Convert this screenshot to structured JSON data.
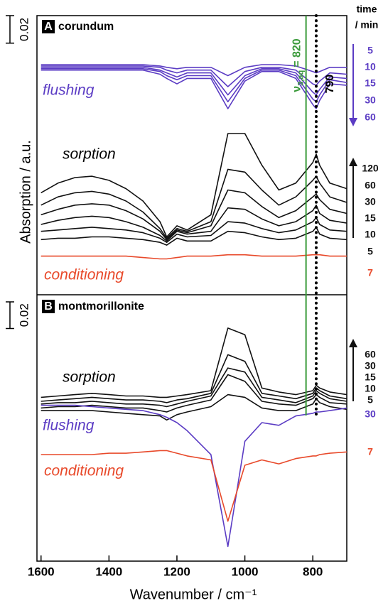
{
  "shared": {
    "x_label": "Wavenumber / cm⁻¹",
    "y_label": "Absorption / a.u.",
    "xlim": [
      1612,
      700
    ],
    "xticks": [
      1600,
      1400,
      1200,
      1000,
      800
    ],
    "legend_title": [
      "time",
      "/ min"
    ],
    "markers": [
      {
        "value": 820,
        "symbol": "ν",
        "subscript": "3,aq",
        "label": "= 820",
        "color": "#3a9a3a",
        "style": "solid"
      },
      {
        "value": 790,
        "label": "790",
        "color": "#000000",
        "style": "dotted"
      }
    ]
  },
  "chart_data": [
    {
      "type": "line",
      "panel": "A",
      "title": "corundum",
      "ylim": [
        0,
        0.2
      ],
      "scale_bar": {
        "value": 0.02,
        "label": "0.02"
      },
      "annotations": [
        {
          "text": "flushing",
          "color": "#5b3cc4"
        },
        {
          "text": "sorption",
          "color": "#000000"
        },
        {
          "text": "conditioning",
          "color": "#e8492a"
        }
      ],
      "x": [
        1600,
        1550,
        1500,
        1450,
        1400,
        1350,
        1300,
        1250,
        1230,
        1200,
        1170,
        1100,
        1050,
        1000,
        950,
        900,
        850,
        800,
        790,
        780,
        750,
        700
      ],
      "series": [
        {
          "name": "5",
          "color": "#5b3cc4",
          "values": [
            0.166,
            0.166,
            0.166,
            0.166,
            0.166,
            0.166,
            0.166,
            0.165,
            0.164,
            0.163,
            0.164,
            0.164,
            0.158,
            0.164,
            0.166,
            0.166,
            0.165,
            0.161,
            0.16,
            0.161,
            0.164,
            0.164
          ]
        },
        {
          "name": "10",
          "color": "#5b3cc4",
          "values": [
            0.165,
            0.165,
            0.165,
            0.165,
            0.165,
            0.165,
            0.165,
            0.164,
            0.162,
            0.16,
            0.162,
            0.162,
            0.15,
            0.161,
            0.164,
            0.164,
            0.162,
            0.152,
            0.151,
            0.154,
            0.16,
            0.159
          ]
        },
        {
          "name": "15",
          "color": "#5b3cc4",
          "values": [
            0.164,
            0.164,
            0.164,
            0.164,
            0.164,
            0.164,
            0.164,
            0.162,
            0.16,
            0.157,
            0.16,
            0.16,
            0.144,
            0.158,
            0.163,
            0.163,
            0.16,
            0.146,
            0.144,
            0.148,
            0.157,
            0.156
          ]
        },
        {
          "name": "30",
          "color": "#5b3cc4",
          "values": [
            0.163,
            0.163,
            0.163,
            0.163,
            0.163,
            0.163,
            0.163,
            0.161,
            0.158,
            0.155,
            0.158,
            0.158,
            0.139,
            0.156,
            0.162,
            0.162,
            0.158,
            0.141,
            0.139,
            0.144,
            0.155,
            0.153
          ]
        },
        {
          "name": "60",
          "color": "#5b3cc4",
          "values": [
            0.162,
            0.162,
            0.162,
            0.162,
            0.162,
            0.162,
            0.162,
            0.159,
            0.156,
            0.152,
            0.156,
            0.156,
            0.134,
            0.154,
            0.161,
            0.161,
            0.156,
            0.137,
            0.134,
            0.14,
            0.152,
            0.151
          ]
        },
        {
          "name": "120",
          "color": "#111111",
          "values": [
            0.073,
            0.08,
            0.084,
            0.085,
            0.082,
            0.076,
            0.067,
            0.052,
            0.041,
            0.049,
            0.046,
            0.057,
            0.116,
            0.116,
            0.093,
            0.075,
            0.08,
            0.095,
            0.101,
            0.093,
            0.08,
            0.076
          ]
        },
        {
          "name": "60",
          "color": "#111111",
          "values": [
            0.064,
            0.07,
            0.073,
            0.074,
            0.072,
            0.067,
            0.059,
            0.047,
            0.04,
            0.047,
            0.045,
            0.052,
            0.09,
            0.088,
            0.075,
            0.064,
            0.07,
            0.082,
            0.085,
            0.08,
            0.07,
            0.066
          ]
        },
        {
          "name": "30",
          "color": "#111111",
          "values": [
            0.057,
            0.061,
            0.064,
            0.065,
            0.064,
            0.06,
            0.054,
            0.045,
            0.039,
            0.046,
            0.044,
            0.049,
            0.075,
            0.073,
            0.063,
            0.055,
            0.06,
            0.07,
            0.072,
            0.068,
            0.061,
            0.058
          ]
        },
        {
          "name": "15",
          "color": "#111111",
          "values": [
            0.05,
            0.053,
            0.055,
            0.056,
            0.055,
            0.052,
            0.048,
            0.042,
            0.038,
            0.045,
            0.043,
            0.045,
            0.062,
            0.061,
            0.054,
            0.049,
            0.052,
            0.06,
            0.064,
            0.058,
            0.053,
            0.051
          ]
        },
        {
          "name": "10",
          "color": "#111111",
          "values": [
            0.045,
            0.046,
            0.047,
            0.048,
            0.047,
            0.046,
            0.044,
            0.04,
            0.037,
            0.043,
            0.041,
            0.042,
            0.052,
            0.051,
            0.047,
            0.044,
            0.046,
            0.052,
            0.055,
            0.05,
            0.046,
            0.045
          ]
        },
        {
          "name": "5",
          "color": "#111111",
          "values": [
            0.039,
            0.04,
            0.04,
            0.041,
            0.041,
            0.04,
            0.039,
            0.037,
            0.035,
            0.04,
            0.038,
            0.038,
            0.045,
            0.044,
            0.041,
            0.039,
            0.04,
            0.045,
            0.048,
            0.043,
            0.04,
            0.039
          ]
        },
        {
          "name": "7",
          "color": "#e8492a",
          "values": [
            0.027,
            0.027,
            0.027,
            0.027,
            0.027,
            0.027,
            0.026,
            0.025,
            0.025,
            0.026,
            0.027,
            0.027,
            0.028,
            0.028,
            0.027,
            0.027,
            0.027,
            0.028,
            0.028,
            0.028,
            0.027,
            0.027
          ]
        }
      ]
    },
    {
      "type": "line",
      "panel": "B",
      "title": "montmorillonite",
      "ylim": [
        0,
        0.2
      ],
      "scale_bar": {
        "value": 0.02,
        "label": "0.02"
      },
      "annotations": [
        {
          "text": "sorption",
          "color": "#000000"
        },
        {
          "text": "flushing",
          "color": "#5b3cc4"
        },
        {
          "text": "conditioning",
          "color": "#e8492a"
        }
      ],
      "x": [
        1600,
        1550,
        1500,
        1450,
        1400,
        1350,
        1300,
        1250,
        1230,
        1200,
        1170,
        1100,
        1050,
        1000,
        950,
        900,
        850,
        800,
        790,
        780,
        750,
        700
      ],
      "series": [
        {
          "name": "60",
          "color": "#111111",
          "values": [
            0.123,
            0.124,
            0.125,
            0.126,
            0.125,
            0.124,
            0.124,
            0.123,
            0.123,
            0.124,
            0.125,
            0.128,
            0.175,
            0.17,
            0.13,
            0.127,
            0.125,
            0.128,
            0.132,
            0.13,
            0.127,
            0.125
          ]
        },
        {
          "name": "30",
          "color": "#111111",
          "values": [
            0.12,
            0.121,
            0.122,
            0.123,
            0.122,
            0.121,
            0.121,
            0.12,
            0.119,
            0.121,
            0.122,
            0.126,
            0.155,
            0.15,
            0.126,
            0.124,
            0.122,
            0.126,
            0.13,
            0.128,
            0.124,
            0.122
          ]
        },
        {
          "name": "15",
          "color": "#111111",
          "values": [
            0.118,
            0.119,
            0.119,
            0.12,
            0.119,
            0.118,
            0.118,
            0.117,
            0.116,
            0.118,
            0.12,
            0.124,
            0.145,
            0.142,
            0.123,
            0.121,
            0.119,
            0.124,
            0.128,
            0.126,
            0.122,
            0.12
          ]
        },
        {
          "name": "10",
          "color": "#111111",
          "values": [
            0.115,
            0.116,
            0.116,
            0.117,
            0.116,
            0.115,
            0.115,
            0.113,
            0.112,
            0.115,
            0.117,
            0.121,
            0.14,
            0.135,
            0.12,
            0.118,
            0.117,
            0.122,
            0.125,
            0.123,
            0.119,
            0.118
          ]
        },
        {
          "name": "5",
          "color": "#111111",
          "values": [
            0.113,
            0.113,
            0.113,
            0.113,
            0.112,
            0.111,
            0.11,
            0.109,
            0.106,
            0.11,
            0.112,
            0.116,
            0.125,
            0.123,
            0.115,
            0.113,
            0.113,
            0.118,
            0.122,
            0.119,
            0.116,
            0.114
          ]
        },
        {
          "name": "30",
          "color": "#5b3cc4",
          "values": [
            0.117,
            0.117,
            0.117,
            0.116,
            0.115,
            0.114,
            0.113,
            0.11,
            0.108,
            0.104,
            0.098,
            0.08,
            0.011,
            0.09,
            0.104,
            0.102,
            0.109,
            0.111,
            0.112,
            0.112,
            0.113,
            0.115
          ]
        },
        {
          "name": "7",
          "color": "#e8492a",
          "values": [
            0.08,
            0.08,
            0.08,
            0.08,
            0.081,
            0.081,
            0.082,
            0.083,
            0.083,
            0.081,
            0.079,
            0.076,
            0.03,
            0.072,
            0.076,
            0.073,
            0.077,
            0.079,
            0.079,
            0.08,
            0.081,
            0.082
          ]
        }
      ]
    }
  ]
}
